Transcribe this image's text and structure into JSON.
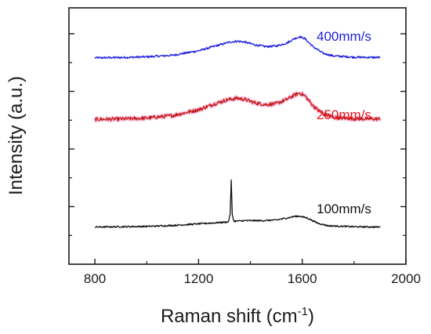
{
  "chart_data": {
    "type": "line",
    "title": "",
    "xlabel": "Raman shift (cm",
    "xlabel_superscript": "-1",
    "xlabel_suffix": ")",
    "ylabel": "Intensity (a.u.)",
    "xlim": [
      700,
      2000
    ],
    "x_ticks": [
      800,
      1200,
      1600,
      2000
    ],
    "y_tick_count": 4,
    "grid": false,
    "legend": "inline labels, right of each curve",
    "series": [
      {
        "name": "400mm/s",
        "color": "#1f1fe0",
        "baseline": 0.805,
        "points": [
          [
            800,
            0
          ],
          [
            900,
            0.005
          ],
          [
            1000,
            0.015
          ],
          [
            1100,
            0.04
          ],
          [
            1200,
            0.11
          ],
          [
            1270,
            0.19
          ],
          [
            1320,
            0.245
          ],
          [
            1350,
            0.26
          ],
          [
            1380,
            0.245
          ],
          [
            1420,
            0.2
          ],
          [
            1460,
            0.175
          ],
          [
            1500,
            0.185
          ],
          [
            1540,
            0.23
          ],
          [
            1570,
            0.3
          ],
          [
            1590,
            0.33
          ],
          [
            1610,
            0.3
          ],
          [
            1640,
            0.18
          ],
          [
            1680,
            0.07
          ],
          [
            1720,
            0.03
          ],
          [
            1800,
            0.01
          ],
          [
            1900,
            0.005
          ]
        ]
      },
      {
        "name": "250mm/s",
        "color": "#e8141e",
        "baseline": 0.565,
        "points": [
          [
            800,
            0
          ],
          [
            900,
            0.005
          ],
          [
            1000,
            0.02
          ],
          [
            1100,
            0.06
          ],
          [
            1200,
            0.15
          ],
          [
            1260,
            0.24
          ],
          [
            1310,
            0.305
          ],
          [
            1350,
            0.33
          ],
          [
            1380,
            0.31
          ],
          [
            1420,
            0.255
          ],
          [
            1460,
            0.23
          ],
          [
            1500,
            0.245
          ],
          [
            1540,
            0.31
          ],
          [
            1570,
            0.38
          ],
          [
            1590,
            0.41
          ],
          [
            1610,
            0.37
          ],
          [
            1640,
            0.22
          ],
          [
            1680,
            0.08
          ],
          [
            1720,
            0.03
          ],
          [
            1800,
            0.01
          ],
          [
            1900,
            0.005
          ]
        ]
      },
      {
        "name": "100mm/s",
        "color": "#111111",
        "baseline": 0.145,
        "points": [
          [
            800,
            0
          ],
          [
            900,
            0.005
          ],
          [
            1000,
            0.01
          ],
          [
            1100,
            0.025
          ],
          [
            1200,
            0.05
          ],
          [
            1280,
            0.07
          ],
          [
            1315,
            0.08
          ],
          [
            1322,
            0.2
          ],
          [
            1326,
            0.73
          ],
          [
            1330,
            0.2
          ],
          [
            1336,
            0.09
          ],
          [
            1380,
            0.1
          ],
          [
            1450,
            0.1
          ],
          [
            1500,
            0.11
          ],
          [
            1540,
            0.14
          ],
          [
            1570,
            0.165
          ],
          [
            1590,
            0.17
          ],
          [
            1620,
            0.14
          ],
          [
            1660,
            0.06
          ],
          [
            1700,
            0.02
          ],
          [
            1800,
            0.005
          ],
          [
            1900,
            0
          ]
        ]
      }
    ]
  }
}
